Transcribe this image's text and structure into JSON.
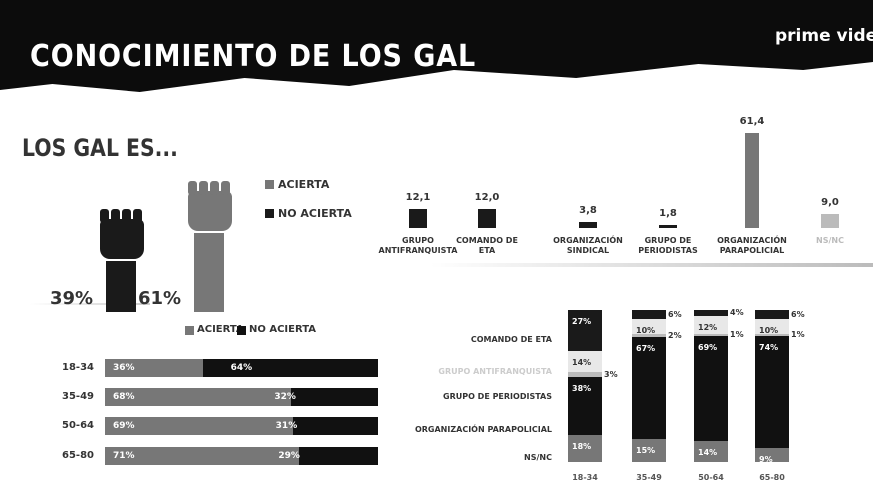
{
  "header": {
    "title": "CONOCIMIENTO DE LOS GAL",
    "logo": "prime video"
  },
  "subtitle": "LOS GAL ES...",
  "chart_data": [
    {
      "type": "pictogram",
      "series": [
        {
          "name": "ACIERTA",
          "color": "#777777",
          "values": [
            61
          ],
          "value_labels": [
            "61%"
          ]
        },
        {
          "name": "NO ACIERTA",
          "color": "#1a1a1a",
          "values": [
            39
          ],
          "value_labels": [
            "39%"
          ]
        }
      ]
    },
    {
      "type": "bar",
      "categories": [
        "GRUPO ANTIFRANQUISTA",
        "COMANDO DE ETA",
        "ORGANIZACIÓN SINDICAL",
        "GRUPO DE PERIODISTAS",
        "ORGANIZACIÓN PARAPOLICIAL",
        "NS/NC"
      ],
      "values": [
        12.1,
        12.0,
        3.8,
        1.8,
        61.4,
        9.0
      ],
      "value_labels": [
        "12,1",
        "12,0",
        "3,8",
        "1,8",
        "61,4",
        "9,0"
      ],
      "colors": [
        "#1a1a1a",
        "#1a1a1a",
        "#1a1a1a",
        "#1a1a1a",
        "#777777",
        "#bbbbbb"
      ]
    },
    {
      "type": "hbar",
      "categories": [
        "18-34",
        "35-49",
        "50-64",
        "65-80"
      ],
      "series": [
        {
          "name": "ACIERTA",
          "color": "#777777",
          "values": [
            36,
            68,
            69,
            71
          ],
          "value_labels": [
            "36%",
            "68%",
            "69%",
            "71%"
          ]
        },
        {
          "name": "NO ACIERTA",
          "color": "#111111",
          "values": [
            64,
            32,
            31,
            29
          ],
          "value_labels": [
            "64%",
            "32%",
            "31%",
            "29%"
          ]
        }
      ]
    },
    {
      "type": "stacked",
      "categories": [
        "18-34",
        "35-49",
        "50-64",
        "65-80"
      ],
      "series": [
        {
          "name": "COMANDO DE ETA",
          "color": "#1a1a1a",
          "values": [
            27,
            6,
            4,
            6
          ],
          "value_labels": [
            "27%",
            "6%",
            "4%",
            "6%"
          ]
        },
        {
          "name": "GRUPO ANTIFRANQUISTA",
          "color": "#e8e8e8",
          "values": [
            14,
            10,
            12,
            10
          ],
          "value_labels": [
            "14%",
            "10%",
            "12%",
            "10%"
          ]
        },
        {
          "name": "GRUPO DE PERIODISTAS",
          "color": "#bbbbbb",
          "values": [
            3,
            2,
            1,
            1
          ],
          "value_labels": [
            "3%",
            "2%",
            "1%",
            "1%"
          ]
        },
        {
          "name": "ORGANIZACIÓN PARAPOLICIAL",
          "color": "#111111",
          "values": [
            38,
            67,
            69,
            74
          ],
          "value_labels": [
            "38%",
            "67%",
            "69%",
            "74%"
          ]
        },
        {
          "name": "NS/NC",
          "color": "#777777",
          "values": [
            18,
            15,
            14,
            9
          ],
          "value_labels": [
            "18%",
            "15%",
            "14%",
            "9%"
          ]
        }
      ]
    }
  ]
}
